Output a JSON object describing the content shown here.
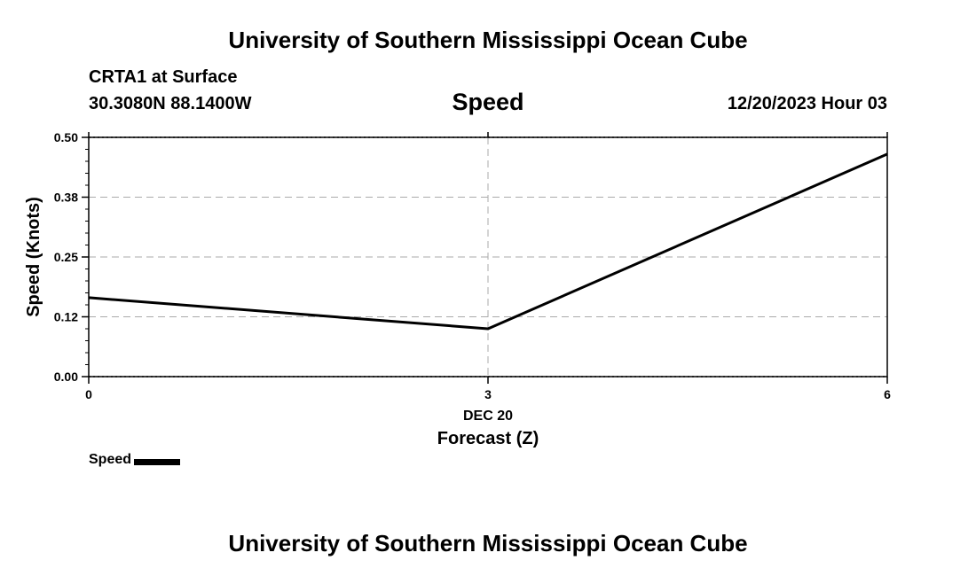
{
  "header": {
    "institution": "University of Southern Mississippi Ocean Cube",
    "station": "CRTA1 at Surface",
    "coordinates": "30.3080N  88.1400W",
    "variable": "Speed",
    "timestamp": "12/20/2023 Hour 03"
  },
  "footer": {
    "institution": "University of Southern Mississippi Ocean Cube"
  },
  "chart_data": {
    "type": "line",
    "title": "Speed",
    "xlabel": "Forecast (Z)",
    "xlabel_date": "DEC 20",
    "ylabel": "Speed (Knots)",
    "x": [
      0,
      3,
      6
    ],
    "xlim": [
      0,
      6
    ],
    "ylim": [
      0,
      0.5
    ],
    "xticks": [
      "0",
      "3",
      "6"
    ],
    "yticks": [
      "0.00",
      "0.12",
      "0.25",
      "0.38",
      "0.50"
    ],
    "ytick_values": [
      0,
      0.125,
      0.25,
      0.375,
      0.5
    ],
    "grid": true,
    "series": [
      {
        "name": "Speed",
        "color": "#000000",
        "values": [
          0.165,
          0.1,
          0.465
        ]
      }
    ],
    "legend": {
      "position": "bottom-left",
      "label": "Speed"
    }
  }
}
